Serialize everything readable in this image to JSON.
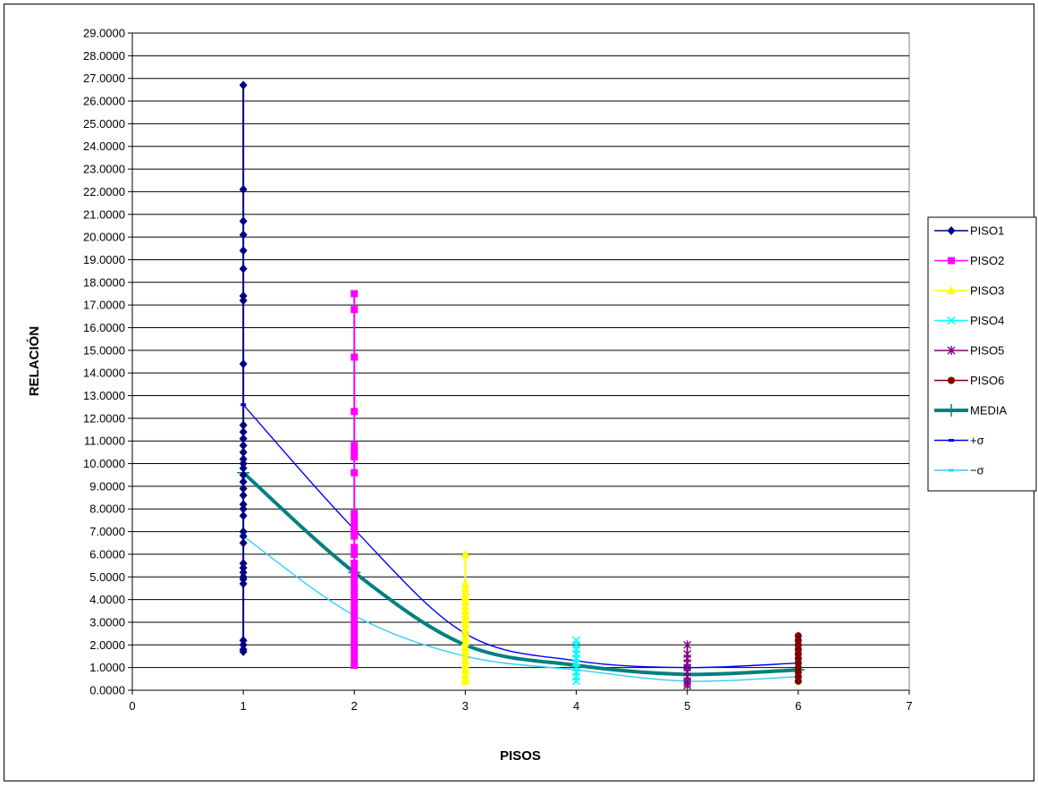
{
  "chart_data": {
    "type": "scatter",
    "title": "",
    "xlabel": "PISOS",
    "ylabel": "RELACIÓN",
    "xlim": [
      0,
      7
    ],
    "ylim": [
      0,
      29
    ],
    "x_ticks": [
      "0",
      "1",
      "2",
      "3",
      "4",
      "5",
      "6",
      "7"
    ],
    "y_ticks": [
      "0.0000",
      "1.0000",
      "2.0000",
      "3.0000",
      "4.0000",
      "5.0000",
      "6.0000",
      "7.0000",
      "8.0000",
      "9.0000",
      "10.0000",
      "11.0000",
      "12.0000",
      "13.0000",
      "14.0000",
      "15.0000",
      "16.0000",
      "17.0000",
      "18.0000",
      "19.0000",
      "20.0000",
      "21.0000",
      "22.0000",
      "23.0000",
      "24.0000",
      "25.0000",
      "26.0000",
      "27.0000",
      "28.0000",
      "29.0000"
    ],
    "grid": "horizontal",
    "legend_position": "right",
    "series": [
      {
        "name": "PISO1",
        "kind": "scatter",
        "marker": "diamond",
        "color": "#000080",
        "x": 1,
        "values": [
          26.7,
          22.1,
          20.7,
          20.1,
          19.4,
          18.6,
          17.4,
          17.2,
          14.4,
          11.7,
          11.4,
          11.1,
          10.8,
          10.5,
          10.2,
          10.0,
          9.8,
          9.5,
          9.2,
          8.9,
          8.6,
          8.2,
          8.0,
          7.7,
          7.0,
          6.8,
          6.5,
          5.6,
          5.4,
          5.2,
          5.0,
          4.9,
          4.7,
          2.2,
          2.0,
          1.8,
          1.7
        ]
      },
      {
        "name": "PISO2",
        "kind": "scatter",
        "marker": "square",
        "color": "#FF00FF",
        "x": 2,
        "values": [
          17.5,
          16.8,
          14.7,
          12.3,
          10.8,
          10.5,
          10.3,
          9.6,
          7.8,
          7.5,
          7.2,
          7.0,
          6.8,
          6.3,
          6.0,
          5.6,
          5.3,
          5.0,
          4.7,
          4.4,
          4.1,
          3.8,
          3.5,
          3.2,
          2.9,
          2.6,
          2.3,
          2.0,
          1.7,
          1.4,
          1.1
        ]
      },
      {
        "name": "PISO3",
        "kind": "scatter",
        "marker": "triangle",
        "color": "#FFFF00",
        "x": 3,
        "values": [
          6.0,
          4.7,
          4.5,
          4.3,
          4.1,
          3.9,
          3.7,
          3.5,
          3.3,
          3.1,
          2.9,
          2.7,
          2.5,
          2.3,
          2.1,
          1.9,
          1.7,
          1.5,
          1.3,
          1.1,
          0.9,
          0.7,
          0.5,
          0.4
        ]
      },
      {
        "name": "PISO4",
        "kind": "scatter",
        "marker": "x",
        "color": "#00FFFF",
        "x": 4,
        "values": [
          2.2,
          2.0,
          1.8,
          1.6,
          1.4,
          1.2,
          1.0,
          0.8,
          0.6,
          0.4
        ]
      },
      {
        "name": "PISO5",
        "kind": "scatter",
        "marker": "star",
        "color": "#800080",
        "x": 5,
        "values": [
          2.0,
          1.6,
          1.4,
          1.2,
          1.0,
          0.8,
          0.6,
          0.4,
          0.3,
          0.2
        ]
      },
      {
        "name": "PISO6",
        "kind": "scatter",
        "marker": "circle",
        "color": "#800000",
        "x": 6,
        "values": [
          2.4,
          2.2,
          2.0,
          1.8,
          1.6,
          1.4,
          1.2,
          1.0,
          0.8,
          0.6,
          0.4
        ]
      },
      {
        "name": "MEDIA",
        "kind": "line",
        "marker": "plus",
        "color": "#008080",
        "x": [
          1,
          2,
          3,
          4,
          5,
          6
        ],
        "values": [
          9.6,
          5.2,
          2.0,
          1.1,
          0.7,
          0.9
        ]
      },
      {
        "name": "+σ",
        "kind": "line",
        "marker": "dash",
        "color": "#0000FF",
        "x": [
          1,
          2,
          3,
          4,
          5,
          6
        ],
        "values": [
          12.6,
          7.1,
          2.5,
          1.3,
          1.0,
          1.2
        ]
      },
      {
        "name": "−σ",
        "kind": "line",
        "marker": "dash",
        "color": "#33CCFF",
        "x": [
          1,
          2,
          3,
          4,
          5,
          6
        ],
        "values": [
          6.8,
          3.3,
          1.5,
          0.9,
          0.4,
          0.6
        ]
      }
    ]
  }
}
